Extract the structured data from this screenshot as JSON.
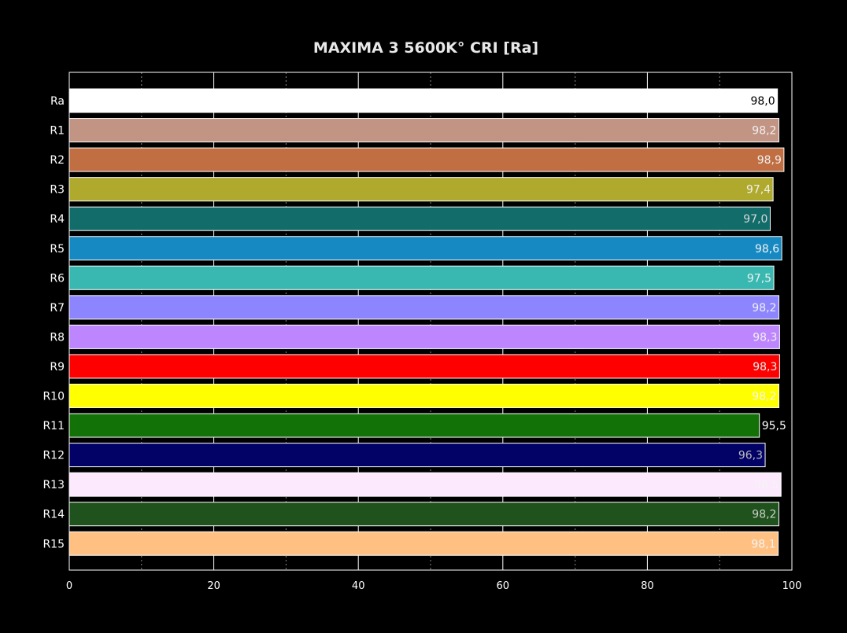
{
  "chart_data": {
    "type": "bar",
    "orientation": "horizontal",
    "title": "MAXIMA 3 5600K° CRI [Ra]",
    "xlabel": "",
    "ylabel": "",
    "xlim": [
      0,
      100
    ],
    "x_ticks": [
      "0",
      "20",
      "40",
      "60",
      "80",
      "100"
    ],
    "grid": "vertical, major solid every 20, minor dotted every 10",
    "background": "#000000",
    "categories": [
      "Ra",
      "R1",
      "R2",
      "R3",
      "R4",
      "R5",
      "R6",
      "R7",
      "R8",
      "R9",
      "R10",
      "R11",
      "R12",
      "R13",
      "R14",
      "R15"
    ],
    "values": [
      98.0,
      98.2,
      98.9,
      97.4,
      97.0,
      98.6,
      97.5,
      98.2,
      98.3,
      98.3,
      98.2,
      95.5,
      96.3,
      98.5,
      98.2,
      98.1
    ],
    "value_labels": [
      "98,0",
      "98,2",
      "98,9",
      "97,4",
      "97,0",
      "98,6",
      "97,5",
      "98,2",
      "98,3",
      "98,3",
      "98,2",
      "95,5",
      "96,3",
      "98,5",
      "98,2",
      "98,1"
    ],
    "colors": [
      "#ffffff",
      "#c29484",
      "#c06e42",
      "#afaa2d",
      "#116c6a",
      "#1689c2",
      "#38b8b0",
      "#8d85fe",
      "#bd86ff",
      "#ff0000",
      "#ffff00",
      "#127107",
      "#020266",
      "#fce9fd",
      "#1f521c",
      "#ffc082"
    ],
    "label_colors": [
      "#000000",
      "#f0f0f0",
      "#f0f0f0",
      "#f0f0f0",
      "#d8d8d8",
      "#f0f0f0",
      "#f0f0f0",
      "#f0f0f0",
      "#f0f0f0",
      "#f0f0f0",
      "#f5f5f5",
      "#ffffff",
      "#bbbbbb",
      "#f4f4f4",
      "#cfcfcf",
      "#f4f4f4"
    ],
    "label_outside": [
      false,
      false,
      false,
      false,
      false,
      false,
      false,
      false,
      false,
      false,
      false,
      true,
      false,
      false,
      false,
      false
    ]
  }
}
